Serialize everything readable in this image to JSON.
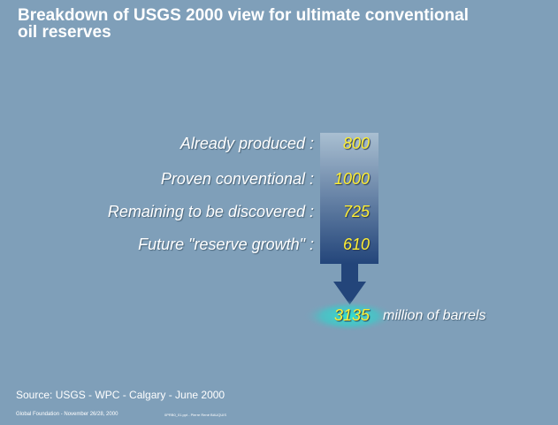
{
  "title": "Breakdown of USGS 2000 view for ultimate conventional oil reserves",
  "items": [
    {
      "label": "Already produced :",
      "value": "800"
    },
    {
      "label": "Proven conventional :",
      "value": "1000"
    },
    {
      "label": "Remaining to be discovered :",
      "value": "725"
    },
    {
      "label": "Future \"reserve growth\" :",
      "value": "610"
    }
  ],
  "total": {
    "value": "3135",
    "unit": "million of barrels"
  },
  "source": "Source: USGS - WPC - Calgary - June 2000",
  "footer": "Global Foundation - November 26/28, 2000",
  "file": "0PRB0_01.ppt - Pierre René BAUQUIS"
}
